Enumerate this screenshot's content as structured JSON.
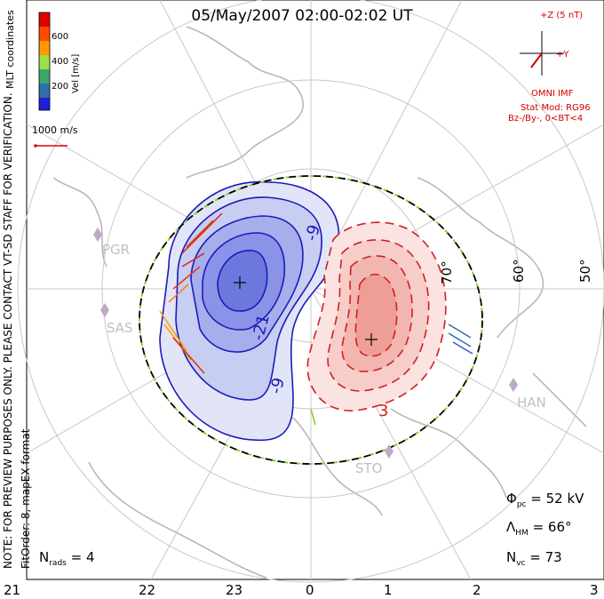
{
  "header": {
    "title": "05/May/2007 02:00-02:02 UT"
  },
  "legend": {
    "coord_label": "MLT coordinates",
    "vel_label": "Vel [m/s]",
    "ticks": [
      "600",
      "400",
      "200"
    ],
    "scale_label": "1000 m/s",
    "colors": [
      "#e00000",
      "#ff4a00",
      "#ff9a00",
      "#9ddf4a",
      "#3aa96a",
      "#2f6fae",
      "#1f1fd8"
    ]
  },
  "imf": {
    "plus_z": "+Z (5 nT)",
    "plus_y": "+Y",
    "source": "OMNI IMF",
    "model": "Stat Mod: RG96",
    "condition": "Bz-/By-, 0<BT<4"
  },
  "note": {
    "line1": "NOTE: FOR PREVIEW PURPOSES ONLY. PLEASE CONTACT VT-SD STAFF FOR VERIFICATION.",
    "line2": "FitOrder: 8, mapEX format"
  },
  "stations": [
    "PGR",
    "SAS",
    "HAN",
    "STO"
  ],
  "latitudes": [
    "70°",
    "60°",
    "50°"
  ],
  "mlt_ticks": [
    "21",
    "22",
    "23",
    "0",
    "1",
    "2",
    "3"
  ],
  "contours": {
    "neg_labels": [
      "-9",
      "-21",
      "-9"
    ],
    "pos_label": "3"
  },
  "stats": {
    "phi_pc": "52 kV",
    "lambda_hm": "66°",
    "n_vc": "73",
    "n_rads": "4"
  }
}
